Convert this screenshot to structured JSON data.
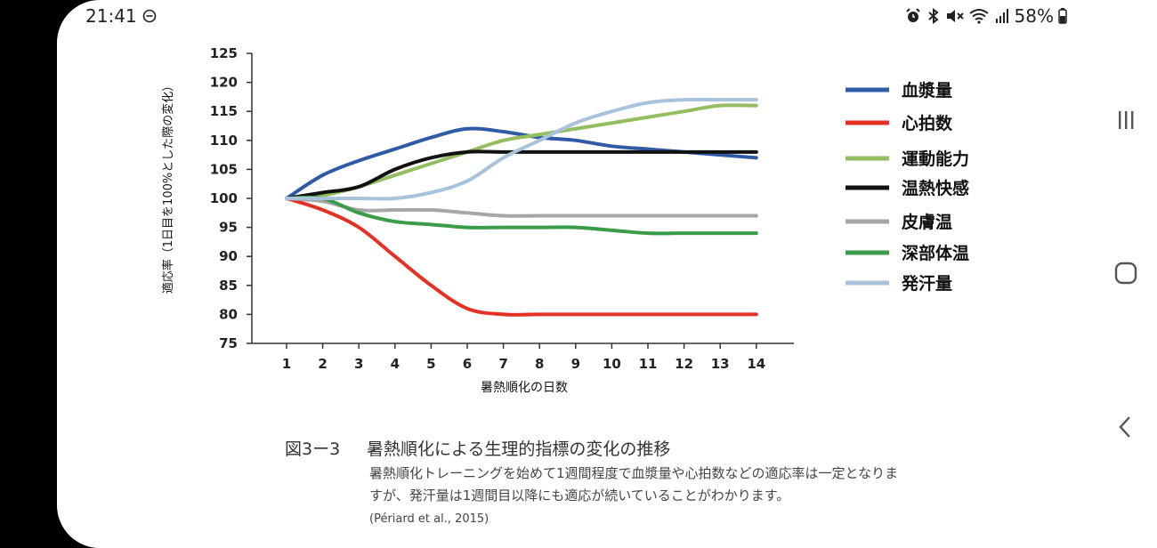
{
  "status_bar": {
    "time": "21:41",
    "icons": [
      "do-not-disturb-icon",
      "alarm-icon",
      "bluetooth-icon",
      "mute-icon",
      "wifi-icon",
      "signal-icon"
    ],
    "battery": "58%"
  },
  "chart_data": {
    "type": "line",
    "title": "",
    "xlabel": "暑熱順化の日数",
    "ylabel": "適応率（1日目を100%とした際の変化）",
    "x": [
      1,
      2,
      3,
      4,
      5,
      6,
      7,
      8,
      9,
      10,
      11,
      12,
      13,
      14
    ],
    "xlim": [
      1,
      14
    ],
    "ylim": [
      75,
      125
    ],
    "yticks": [
      75,
      80,
      85,
      90,
      95,
      100,
      105,
      110,
      115,
      120,
      125
    ],
    "legend_position": "right",
    "grid": false,
    "series": [
      {
        "name": "血漿量",
        "color": "#2f5aa6",
        "values": [
          100,
          104,
          106.5,
          108.5,
          110.5,
          112,
          111.5,
          110.5,
          110,
          109,
          108.5,
          108,
          107.5,
          107
        ]
      },
      {
        "name": "心拍数",
        "color": "#e53124",
        "values": [
          100,
          98,
          95,
          90,
          85,
          81,
          80,
          80,
          80,
          80,
          80,
          80,
          80,
          80
        ]
      },
      {
        "name": "運動能力",
        "color": "#93bd5e",
        "values": [
          100,
          100.5,
          102,
          104,
          106,
          108,
          110,
          111,
          112,
          113,
          114,
          115,
          116,
          116
        ]
      },
      {
        "name": "温熱快感",
        "color": "#111111",
        "values": [
          100,
          101,
          102,
          105,
          107,
          108,
          108,
          108,
          108,
          108,
          108,
          108,
          108,
          108
        ]
      },
      {
        "name": "皮膚温",
        "color": "#a6a6a6",
        "values": [
          100,
          99.5,
          98,
          98,
          98,
          97.5,
          97,
          97,
          97,
          97,
          97,
          97,
          97,
          97
        ]
      },
      {
        "name": "深部体温",
        "color": "#3a9b48",
        "values": [
          100,
          100,
          97.5,
          96,
          95.5,
          95,
          95,
          95,
          95,
          94.5,
          94,
          94,
          94,
          94
        ]
      },
      {
        "name": "発汗量",
        "color": "#a7c2da",
        "values": [
          100,
          100,
          100,
          100,
          101,
          103,
          107,
          110,
          113,
          115,
          116.5,
          117,
          117,
          117
        ]
      }
    ]
  },
  "caption": {
    "figure_number": "図3ー3",
    "title": "暑熱順化による生理的指標の変化の推移",
    "body": "暑熱順化トレーニングを始めて1週間程度で血漿量や心拍数などの適応率は一定となりますが、発汗量は1週間目以降にも適応が続いていることがわかります。",
    "source": "(Périard et al., 2015)"
  },
  "nav_bar": {
    "buttons": [
      "recent-apps-button",
      "home-button",
      "back-button"
    ]
  }
}
